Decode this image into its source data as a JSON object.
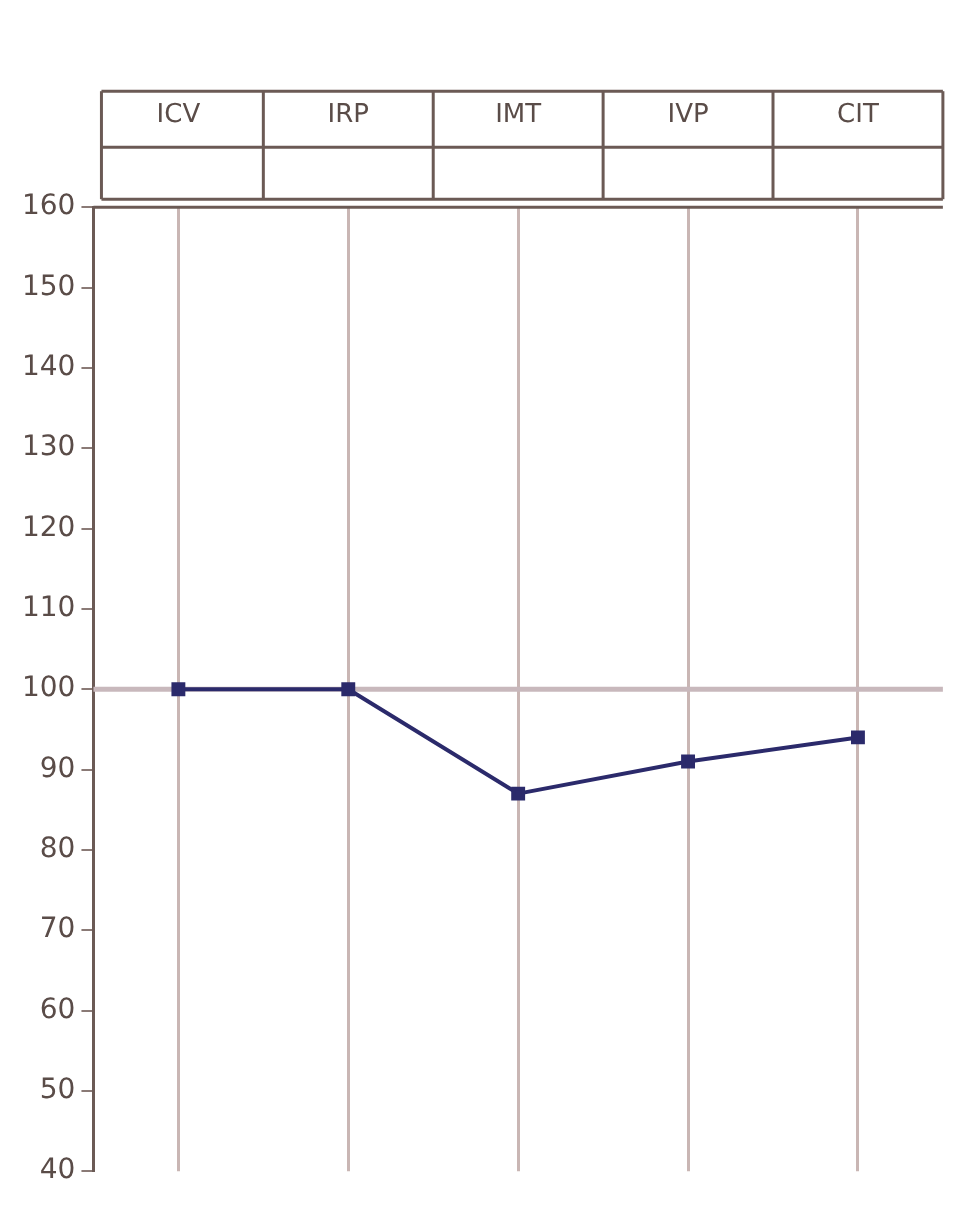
{
  "chart_data": {
    "type": "line",
    "categories": [
      "ICV",
      "IRP",
      "IMT",
      "IVP",
      "CIT"
    ],
    "series": [
      {
        "color": "#2b2a6b",
        "values": [
          100,
          100,
          87,
          91,
          94
        ]
      }
    ],
    "ylim": [
      40,
      160
    ],
    "yticks": [
      40,
      50,
      60,
      70,
      80,
      90,
      100,
      110,
      120,
      130,
      140,
      150,
      160
    ],
    "ref_lines": [
      {
        "axis": "y",
        "value": 100,
        "color": "#c8b8bc"
      }
    ],
    "grid": "x",
    "legend": false,
    "marker": "square",
    "line_style": "solid"
  }
}
